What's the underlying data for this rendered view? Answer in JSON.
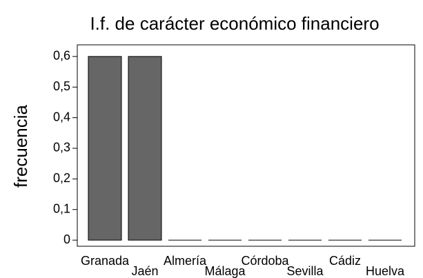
{
  "chart_data": {
    "type": "bar",
    "title": "I.f. de carácter económico financiero",
    "ylabel": "frecuencia",
    "categories": [
      "Granada",
      "Jaén",
      "Almería",
      "Málaga",
      "Córdoba",
      "Sevilla",
      "Cádiz",
      "Huelva"
    ],
    "values": [
      0.6,
      0.6,
      0,
      0,
      0,
      0,
      0,
      0
    ],
    "color": "#666666",
    "ylim": [
      -0.02,
      0.638
    ],
    "yticks": [
      0,
      {
        "value": 0.1,
        "label": "0,1"
      },
      {
        "value": 0.2,
        "label": "0,2"
      },
      {
        "value": 0.3,
        "label": "0,3"
      },
      {
        "value": 0.4,
        "label": "0,4"
      },
      {
        "value": 0.5,
        "label": "0,5"
      },
      {
        "value": 0.6,
        "label": "0,6"
      }
    ],
    "grid": false
  }
}
